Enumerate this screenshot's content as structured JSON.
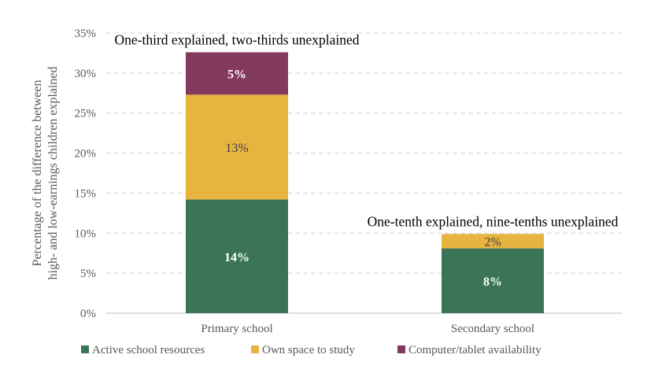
{
  "chart_data": {
    "type": "bar",
    "stacked": true,
    "categories": [
      "Primary school",
      "Secondary school"
    ],
    "series": [
      {
        "name": "Active school resources",
        "color": "#3b7556",
        "values": [
          14.2,
          8.1
        ],
        "labels": [
          "14%",
          "8%"
        ],
        "label_color": "#ffffff",
        "label_bold": true
      },
      {
        "name": "Own space to study",
        "color": "#e7b43f",
        "values": [
          13.1,
          1.8
        ],
        "labels": [
          "13%",
          "2%"
        ],
        "label_color": "#404040",
        "label_bold": false
      },
      {
        "name": "Computer/tablet availability",
        "color": "#843a5e",
        "values": [
          5.3,
          0
        ],
        "labels": [
          "5%",
          ""
        ],
        "label_color": "#ffffff",
        "label_bold": true
      }
    ],
    "ylabel": [
      "Percentage of the difference between",
      "high- and low-earnings children explained"
    ],
    "ylim": [
      0,
      35
    ],
    "yticks": [
      0,
      5,
      10,
      15,
      20,
      25,
      30,
      35
    ],
    "ytick_labels": [
      "0%",
      "5%",
      "10%",
      "15%",
      "20%",
      "25%",
      "30%",
      "35%"
    ],
    "grid": "horizontal dashed",
    "legend": "bottom",
    "annotations": [
      {
        "text": "One-third explained, two-thirds unexplained",
        "category": "Primary school"
      },
      {
        "text": "One-tenth explained, nine-tenths unexplained",
        "category": "Secondary school"
      }
    ]
  }
}
